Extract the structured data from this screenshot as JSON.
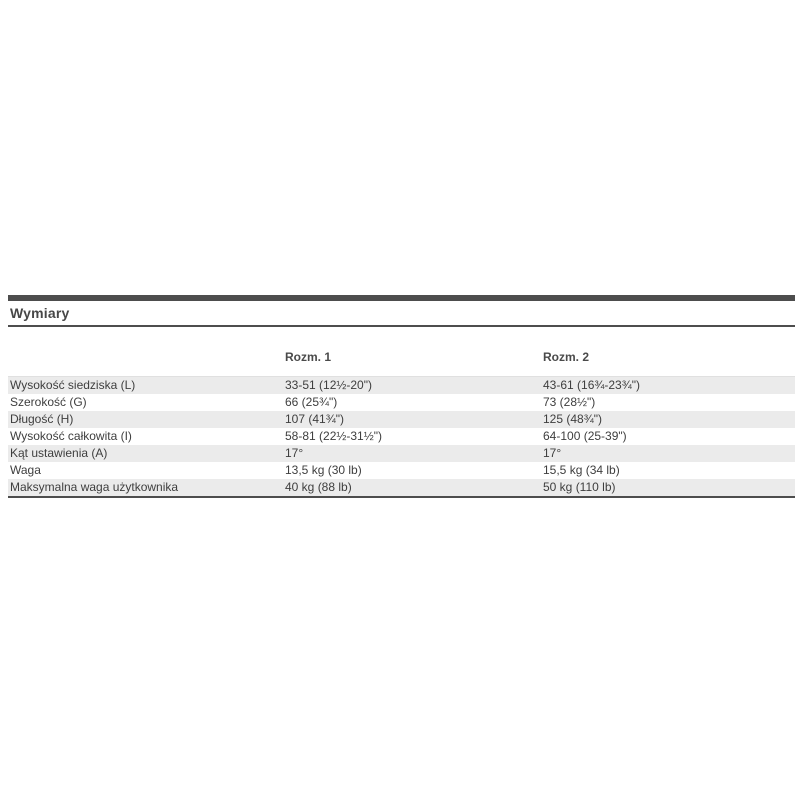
{
  "section": {
    "title": "Wymiary",
    "accent_color": "#4d4d4d",
    "stripe_color": "#ebebeb"
  },
  "table": {
    "columns": [
      "",
      "Rozm. 1",
      "Rozm. 2"
    ],
    "rows": [
      {
        "label": "Wysokość siedziska (L)",
        "size1": "33-51 (12½-20\")",
        "size2": "43-61 (16¾-23¾\")"
      },
      {
        "label": "Szerokość (G)",
        "size1": "66 (25¾\")",
        "size2": "73 (28½\")"
      },
      {
        "label": "Długość (H)",
        "size1": "107 (41¾\")",
        "size2": "125 (48¾\")"
      },
      {
        "label": "Wysokość całkowita (I)",
        "size1": "58-81 (22½-31½\")",
        "size2": "64-100 (25-39\")"
      },
      {
        "label": "Kąt ustawienia (A)",
        "size1": "17°",
        "size2": "17°"
      },
      {
        "label": "Waga",
        "size1": "13,5 kg (30 lb)",
        "size2": "15,5 kg (34 lb)"
      },
      {
        "label": "Maksymalna waga użytkownika",
        "size1": "40 kg (88 lb)",
        "size2": "50 kg (110 lb)"
      }
    ]
  }
}
